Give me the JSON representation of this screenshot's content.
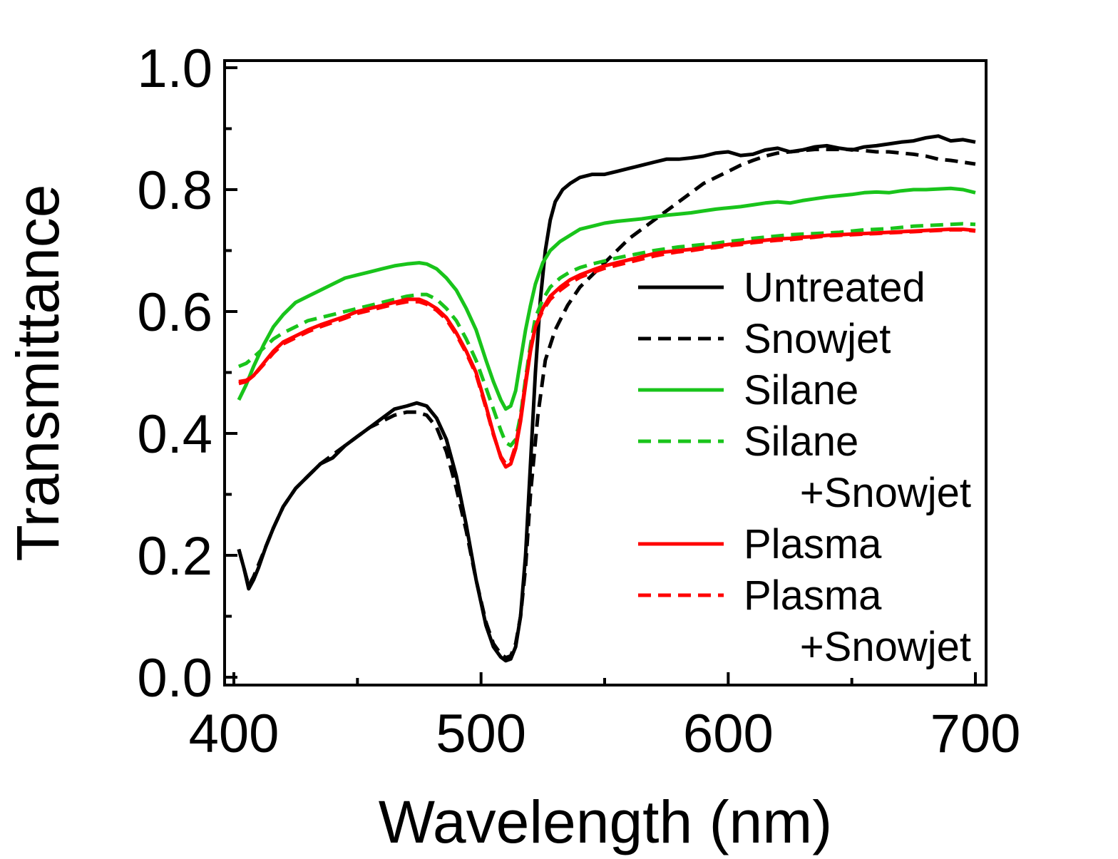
{
  "chart_data": {
    "type": "line",
    "xlabel": "Wavelength (nm)",
    "ylabel": "Transmittance",
    "xlim": [
      400,
      700
    ],
    "ylim": [
      0.0,
      1.0
    ],
    "x_ticks": [
      400,
      500,
      600,
      700
    ],
    "x_tick_labels": [
      "400",
      "500",
      "600",
      "700"
    ],
    "y_ticks": [
      0.0,
      0.2,
      0.4,
      0.6,
      0.8,
      1.0
    ],
    "y_tick_labels": [
      "0.0",
      "0.2",
      "0.4",
      "0.6",
      "0.8",
      "1.0"
    ],
    "x_minor_ticks": [
      450,
      550,
      650
    ],
    "y_minor_ticks": [
      0.1,
      0.3,
      0.5,
      0.7,
      0.9
    ],
    "grid": false,
    "legend_position": "right",
    "series": [
      {
        "name": "Untreated",
        "color": "#000000",
        "dash": "solid",
        "x": [
          402,
          404,
          406,
          408,
          410,
          413,
          416,
          420,
          425,
          430,
          435,
          440,
          445,
          450,
          455,
          460,
          465,
          470,
          474,
          478,
          482,
          486,
          490,
          494,
          498,
          502,
          505,
          508,
          510,
          512,
          514,
          516,
          518,
          520,
          522,
          524,
          526,
          528,
          530,
          533,
          536,
          540,
          545,
          550,
          555,
          560,
          565,
          570,
          575,
          580,
          585,
          590,
          595,
          600,
          605,
          610,
          615,
          620,
          625,
          630,
          635,
          640,
          645,
          650,
          655,
          660,
          665,
          670,
          675,
          680,
          685,
          690,
          695,
          700
        ],
        "y": [
          0.21,
          0.18,
          0.145,
          0.16,
          0.18,
          0.215,
          0.245,
          0.28,
          0.31,
          0.33,
          0.35,
          0.36,
          0.38,
          0.395,
          0.41,
          0.425,
          0.44,
          0.445,
          0.45,
          0.445,
          0.425,
          0.39,
          0.33,
          0.25,
          0.16,
          0.085,
          0.05,
          0.033,
          0.027,
          0.03,
          0.05,
          0.1,
          0.2,
          0.35,
          0.5,
          0.62,
          0.7,
          0.75,
          0.78,
          0.8,
          0.81,
          0.82,
          0.825,
          0.825,
          0.83,
          0.835,
          0.84,
          0.845,
          0.85,
          0.85,
          0.852,
          0.855,
          0.86,
          0.862,
          0.856,
          0.858,
          0.865,
          0.868,
          0.862,
          0.865,
          0.87,
          0.872,
          0.868,
          0.865,
          0.87,
          0.872,
          0.875,
          0.878,
          0.88,
          0.885,
          0.888,
          0.88,
          0.882,
          0.878
        ]
      },
      {
        "name": "Snowjet",
        "color": "#000000",
        "dash": "dashed",
        "x": [
          402,
          404,
          406,
          408,
          410,
          413,
          416,
          420,
          425,
          430,
          435,
          440,
          445,
          450,
          455,
          460,
          465,
          470,
          474,
          478,
          482,
          486,
          490,
          494,
          498,
          502,
          505,
          508,
          510,
          512,
          514,
          516,
          518,
          520,
          523,
          526,
          530,
          535,
          540,
          545,
          550,
          555,
          560,
          565,
          570,
          575,
          580,
          585,
          590,
          595,
          600,
          605,
          610,
          615,
          620,
          625,
          630,
          635,
          640,
          645,
          650,
          655,
          660,
          665,
          670,
          675,
          680,
          685,
          690,
          695,
          700
        ],
        "y": [
          0.21,
          0.18,
          0.15,
          0.165,
          0.185,
          0.215,
          0.245,
          0.28,
          0.31,
          0.33,
          0.35,
          0.365,
          0.38,
          0.395,
          0.41,
          0.42,
          0.43,
          0.435,
          0.435,
          0.43,
          0.41,
          0.37,
          0.31,
          0.24,
          0.16,
          0.09,
          0.055,
          0.038,
          0.032,
          0.035,
          0.055,
          0.1,
          0.18,
          0.3,
          0.43,
          0.52,
          0.57,
          0.61,
          0.64,
          0.66,
          0.68,
          0.7,
          0.72,
          0.735,
          0.75,
          0.765,
          0.78,
          0.795,
          0.81,
          0.82,
          0.83,
          0.84,
          0.848,
          0.855,
          0.86,
          0.862,
          0.864,
          0.866,
          0.866,
          0.866,
          0.866,
          0.864,
          0.862,
          0.862,
          0.86,
          0.858,
          0.855,
          0.85,
          0.848,
          0.845,
          0.842
        ]
      },
      {
        "name": "Silane",
        "color": "#19c41b",
        "dash": "solid",
        "x": [
          402,
          405,
          408,
          412,
          416,
          420,
          425,
          430,
          435,
          440,
          445,
          450,
          455,
          460,
          465,
          470,
          475,
          478,
          482,
          486,
          490,
          494,
          498,
          502,
          505,
          508,
          510,
          512,
          514,
          516,
          518,
          520,
          522,
          525,
          528,
          532,
          536,
          540,
          545,
          550,
          555,
          560,
          565,
          570,
          575,
          580,
          585,
          590,
          595,
          600,
          605,
          610,
          615,
          620,
          625,
          630,
          635,
          640,
          645,
          650,
          655,
          660,
          665,
          670,
          675,
          680,
          685,
          690,
          695,
          700
        ],
        "y": [
          0.455,
          0.48,
          0.51,
          0.545,
          0.575,
          0.595,
          0.615,
          0.625,
          0.635,
          0.645,
          0.655,
          0.66,
          0.665,
          0.67,
          0.675,
          0.678,
          0.68,
          0.678,
          0.67,
          0.655,
          0.635,
          0.605,
          0.57,
          0.52,
          0.485,
          0.455,
          0.44,
          0.445,
          0.47,
          0.52,
          0.57,
          0.61,
          0.645,
          0.68,
          0.7,
          0.715,
          0.725,
          0.735,
          0.74,
          0.745,
          0.748,
          0.75,
          0.752,
          0.755,
          0.758,
          0.76,
          0.762,
          0.765,
          0.768,
          0.77,
          0.772,
          0.775,
          0.778,
          0.78,
          0.778,
          0.782,
          0.785,
          0.788,
          0.79,
          0.792,
          0.795,
          0.796,
          0.795,
          0.798,
          0.8,
          0.8,
          0.801,
          0.802,
          0.8,
          0.795
        ]
      },
      {
        "name": "Silane\n+Snowjet",
        "color": "#19c41b",
        "dash": "dashed",
        "x": [
          402,
          405,
          408,
          412,
          416,
          420,
          425,
          430,
          435,
          440,
          445,
          450,
          455,
          460,
          465,
          470,
          475,
          478,
          482,
          486,
          490,
          494,
          498,
          502,
          505,
          508,
          510,
          512,
          514,
          516,
          518,
          520,
          522,
          525,
          528,
          532,
          536,
          540,
          545,
          550,
          555,
          560,
          565,
          570,
          575,
          580,
          585,
          590,
          595,
          600,
          605,
          610,
          615,
          620,
          625,
          630,
          635,
          640,
          645,
          650,
          655,
          660,
          665,
          670,
          675,
          680,
          685,
          690,
          695,
          700
        ],
        "y": [
          0.51,
          0.515,
          0.525,
          0.54,
          0.555,
          0.565,
          0.575,
          0.585,
          0.59,
          0.595,
          0.6,
          0.605,
          0.61,
          0.615,
          0.62,
          0.625,
          0.628,
          0.628,
          0.62,
          0.605,
          0.585,
          0.555,
          0.52,
          0.475,
          0.44,
          0.405,
          0.385,
          0.38,
          0.39,
          0.43,
          0.49,
          0.545,
          0.59,
          0.62,
          0.64,
          0.655,
          0.665,
          0.672,
          0.678,
          0.683,
          0.688,
          0.692,
          0.696,
          0.7,
          0.703,
          0.706,
          0.708,
          0.71,
          0.712,
          0.715,
          0.717,
          0.72,
          0.722,
          0.724,
          0.726,
          0.727,
          0.728,
          0.729,
          0.73,
          0.732,
          0.734,
          0.735,
          0.736,
          0.738,
          0.74,
          0.741,
          0.742,
          0.743,
          0.744,
          0.743
        ]
      },
      {
        "name": "Plasma",
        "color": "#ff0000",
        "dash": "solid",
        "x": [
          402,
          405,
          408,
          412,
          416,
          420,
          425,
          430,
          435,
          440,
          445,
          450,
          455,
          460,
          465,
          470,
          475,
          478,
          482,
          486,
          490,
          494,
          498,
          502,
          505,
          508,
          510,
          512,
          514,
          516,
          518,
          520,
          522,
          525,
          528,
          532,
          536,
          540,
          545,
          550,
          555,
          560,
          565,
          570,
          575,
          580,
          585,
          590,
          595,
          600,
          605,
          610,
          615,
          620,
          625,
          630,
          635,
          640,
          645,
          650,
          655,
          660,
          665,
          670,
          675,
          680,
          685,
          690,
          695,
          700
        ],
        "y": [
          0.482,
          0.485,
          0.495,
          0.515,
          0.535,
          0.55,
          0.56,
          0.57,
          0.578,
          0.585,
          0.592,
          0.6,
          0.605,
          0.61,
          0.615,
          0.62,
          0.62,
          0.615,
          0.605,
          0.59,
          0.565,
          0.535,
          0.5,
          0.445,
          0.4,
          0.36,
          0.345,
          0.35,
          0.375,
          0.42,
          0.48,
          0.535,
          0.575,
          0.605,
          0.625,
          0.64,
          0.652,
          0.66,
          0.668,
          0.675,
          0.68,
          0.685,
          0.69,
          0.695,
          0.698,
          0.7,
          0.702,
          0.705,
          0.707,
          0.71,
          0.712,
          0.715,
          0.717,
          0.719,
          0.72,
          0.722,
          0.723,
          0.725,
          0.726,
          0.727,
          0.728,
          0.729,
          0.73,
          0.731,
          0.732,
          0.733,
          0.734,
          0.735,
          0.735,
          0.733
        ]
      },
      {
        "name": "Plasma\n+Snowjet",
        "color": "#ff0000",
        "dash": "dashed",
        "x": [
          402,
          405,
          408,
          412,
          416,
          420,
          425,
          430,
          435,
          440,
          445,
          450,
          455,
          460,
          465,
          470,
          475,
          478,
          482,
          486,
          490,
          494,
          498,
          502,
          505,
          508,
          510,
          512,
          514,
          516,
          518,
          520,
          522,
          525,
          528,
          532,
          536,
          540,
          545,
          550,
          555,
          560,
          565,
          570,
          575,
          580,
          585,
          590,
          595,
          600,
          605,
          610,
          615,
          620,
          625,
          630,
          635,
          640,
          645,
          650,
          655,
          660,
          665,
          670,
          675,
          680,
          685,
          690,
          695,
          700
        ],
        "y": [
          0.485,
          0.487,
          0.495,
          0.513,
          0.532,
          0.547,
          0.557,
          0.567,
          0.575,
          0.582,
          0.589,
          0.597,
          0.602,
          0.607,
          0.612,
          0.616,
          0.616,
          0.612,
          0.602,
          0.587,
          0.562,
          0.532,
          0.497,
          0.442,
          0.398,
          0.362,
          0.35,
          0.355,
          0.38,
          0.425,
          0.485,
          0.538,
          0.575,
          0.602,
          0.62,
          0.635,
          0.647,
          0.656,
          0.664,
          0.671,
          0.676,
          0.681,
          0.686,
          0.691,
          0.695,
          0.698,
          0.7,
          0.703,
          0.705,
          0.708,
          0.71,
          0.713,
          0.715,
          0.717,
          0.718,
          0.72,
          0.722,
          0.724,
          0.725,
          0.726,
          0.727,
          0.728,
          0.729,
          0.73,
          0.731,
          0.732,
          0.733,
          0.734,
          0.734,
          0.732
        ]
      }
    ]
  }
}
